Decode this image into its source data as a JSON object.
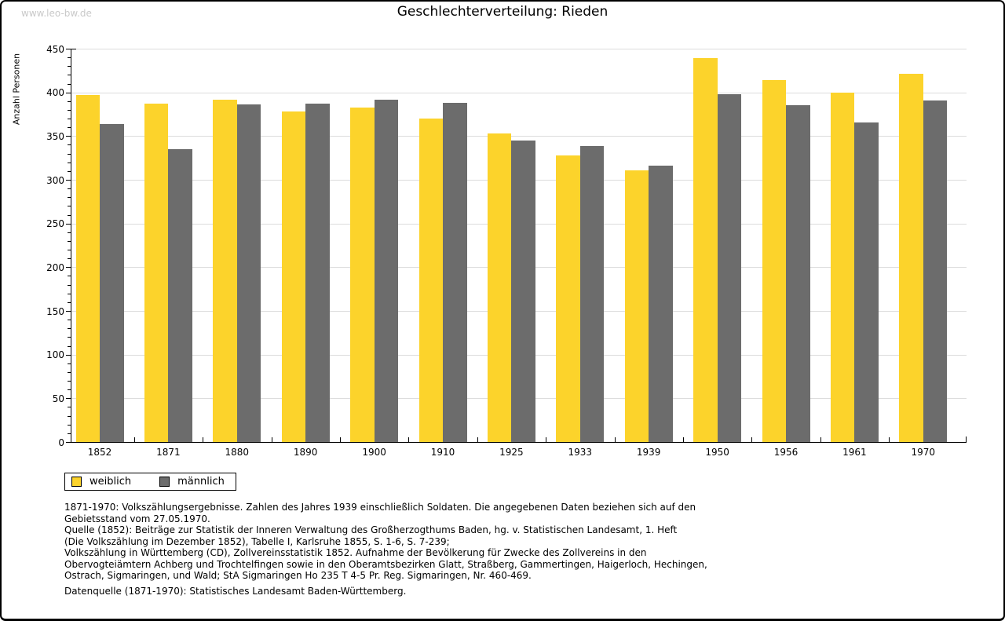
{
  "watermark": "www.leo-bw.de",
  "title": "Geschlechterverteilung: Rieden",
  "chart_data": {
    "type": "bar",
    "title": "Geschlechterverteilung: Rieden",
    "xlabel": "",
    "ylabel": "Anzahl Personen",
    "categories": [
      "1852",
      "1871",
      "1880",
      "1890",
      "1900",
      "1910",
      "1925",
      "1933",
      "1939",
      "1950",
      "1956",
      "1961",
      "1970"
    ],
    "series": [
      {
        "name": "weiblich",
        "color": "#FCD32B",
        "values": [
          397,
          387,
          392,
          378,
          383,
          370,
          353,
          328,
          311,
          439,
          414,
          400,
          421
        ]
      },
      {
        "name": "männlich",
        "color": "#6C6C6C",
        "values": [
          364,
          335,
          386,
          387,
          392,
          388,
          345,
          339,
          316,
          398,
          385,
          366,
          391
        ]
      }
    ],
    "ylim": [
      0,
      450
    ],
    "ytick_step": 50,
    "yminor_step": 10,
    "grid": true,
    "gridline_color": "#dcdcdc",
    "legend_position": "bottom-left"
  },
  "legend": {
    "items": [
      {
        "label": "weiblich",
        "color": "#FCD32B"
      },
      {
        "label": "männlich",
        "color": "#6C6C6C"
      }
    ]
  },
  "footnotes": {
    "lines": [
      "1871-1970: Volkszählungsergebnisse. Zahlen des Jahres 1939 einschließlich Soldaten. Die angegebenen Daten beziehen sich auf den",
      "Gebietsstand vom 27.05.1970.",
      "Quelle (1852): Beiträge zur Statistik der Inneren Verwaltung des Großherzogthums Baden, hg. v. Statistischen Landesamt, 1. Heft",
      "(Die Volkszählung im Dezember 1852), Tabelle I, Karlsruhe 1855, S. 1-6, S. 7-239;",
      "Volkszählung in Württemberg (CD), Zollvereinsstatistik 1852. Aufnahme der Bevölkerung für Zwecke des Zollvereins in den",
      "Obervogteiämtern Achberg und Trochtelfingen sowie in den Oberamtsbezirken Glatt, Straßberg, Gammertingen, Haigerloch, Hechingen,",
      "Ostrach, Sigmaringen, und Wald; StA Sigmaringen Ho 235 T 4-5 Pr. Reg. Sigmaringen, Nr. 460-469."
    ],
    "datasource": "Datenquelle (1871-1970): Statistisches Landesamt Baden-Württemberg."
  }
}
